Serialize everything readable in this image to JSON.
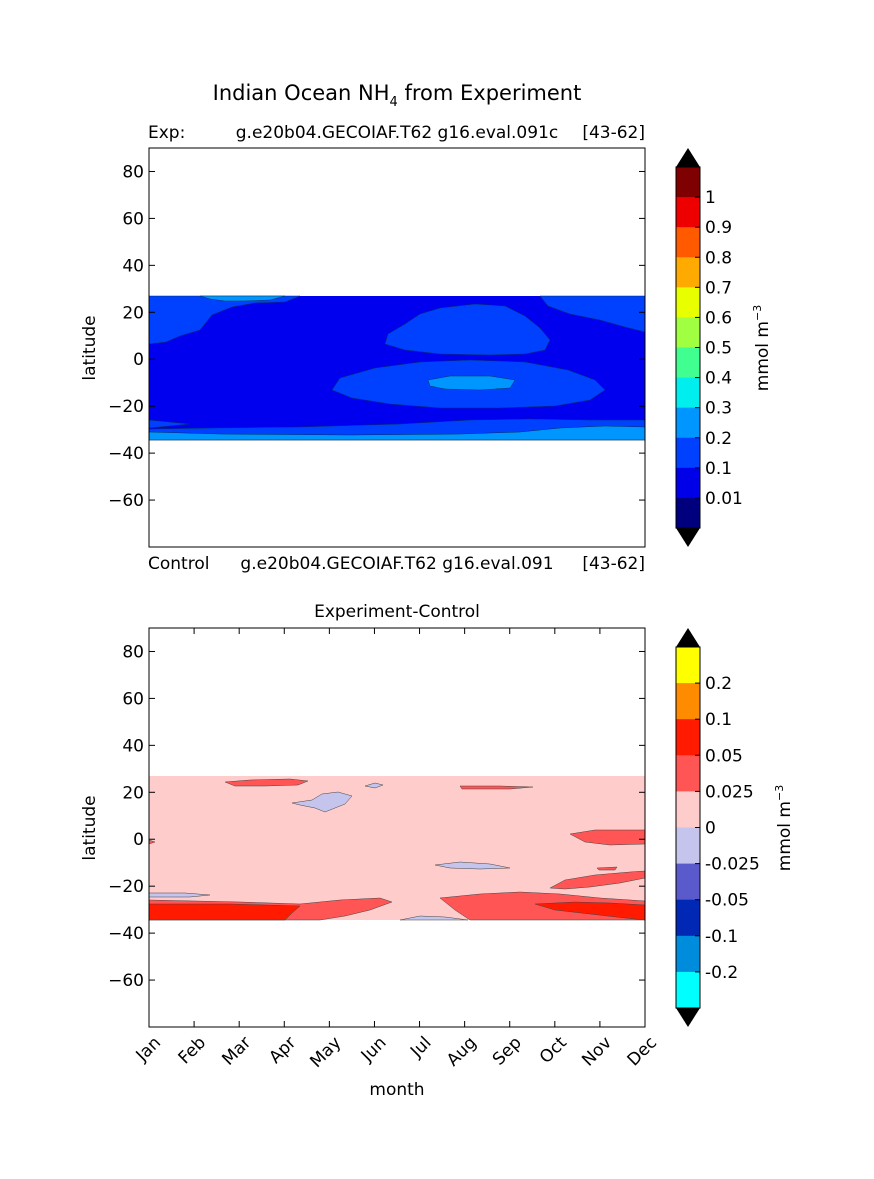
{
  "figure": {
    "title_main": "Indian Ocean NH",
    "title_sub": "4",
    "title_tail": " from Experiment"
  },
  "chart_data": [
    {
      "type": "heatmap",
      "panel": "experiment",
      "title_left": "Exp:",
      "title_center": "g.e20b04.GECOIAF.T62 g16.eval.091c",
      "title_right": "[43-62]",
      "bottom_left": "Control",
      "bottom_center": "g.e20b04.GECOIAF.T62 g16.eval.091",
      "bottom_right": "[43-62]",
      "xlabel": "",
      "ylabel": "latitude",
      "ylim": [
        -80,
        90
      ],
      "yticks": [
        "80",
        "60",
        "40",
        "20",
        "0",
        "−20",
        "−40",
        "−60"
      ],
      "ytick_values": [
        80,
        60,
        40,
        20,
        0,
        -20,
        -40,
        -60
      ],
      "data_lat_range": [
        -34,
        27
      ],
      "colorbar": {
        "label": "mmol m",
        "label_exp": "−3",
        "tick_labels": [
          "1",
          "0.9",
          "0.8",
          "0.7",
          "0.6",
          "0.5",
          "0.4",
          "0.3",
          "0.2",
          "0.1",
          "0.01"
        ],
        "colors_top_to_bottom": [
          "#7f0000",
          "#ee0000",
          "#ff5a00",
          "#ffaa00",
          "#e8ff00",
          "#a0ff40",
          "#40ff90",
          "#00eeee",
          "#0096ff",
          "#0040ff",
          "#0000e8",
          "#00007f"
        ],
        "extend_top": "#000000",
        "extend_bottom": "#000000"
      },
      "dominant_level_colors": {
        "base": "#0000ee",
        "mid": "#0040ff",
        "high": "#0096ff"
      }
    },
    {
      "type": "heatmap",
      "panel": "difference",
      "title": "Experiment-Control",
      "xlabel": "month",
      "ylabel": "latitude",
      "ylim": [
        -80,
        90
      ],
      "yticks": [
        "80",
        "60",
        "40",
        "20",
        "0",
        "−20",
        "−40",
        "−60"
      ],
      "ytick_values": [
        80,
        60,
        40,
        20,
        0,
        -20,
        -40,
        -60
      ],
      "xticks": [
        "Jan",
        "Feb",
        "Mar",
        "Apr",
        "May",
        "Jun",
        "Jul",
        "Aug",
        "Sep",
        "Oct",
        "Nov",
        "Dec"
      ],
      "data_lat_range": [
        -34,
        27
      ],
      "colorbar": {
        "label": "mmol m",
        "label_exp": "−3",
        "tick_labels": [
          "0.2",
          "0.1",
          "0.05",
          "0.025",
          "0",
          "-0.025",
          "-0.05",
          "-0.1",
          "-0.2"
        ],
        "colors_top_to_bottom": [
          "#ffff00",
          "#ff8c00",
          "#ff1a00",
          "#ff5555",
          "#ffcccc",
          "#c4c4ec",
          "#5a5acc",
          "#0028b4",
          "#008cdc",
          "#00ffff"
        ],
        "extend_top": "#000000",
        "extend_bottom": "#000000"
      },
      "dominant_level_colors": {
        "zero_to_0025": "#ffcccc",
        "0025_to_005": "#ff5555",
        "005_to_01": "#ff1a00",
        "neg_0025_to_0": "#c4c4ec"
      }
    }
  ]
}
